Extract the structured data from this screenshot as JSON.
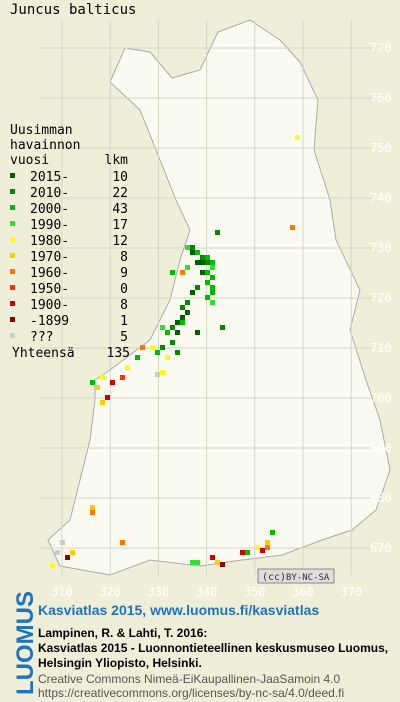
{
  "title": "Juncus balticus",
  "legend": {
    "heading": [
      "Uusimman",
      "havainnon"
    ],
    "col1": "vuosi",
    "col2": "lkm",
    "rows": [
      {
        "label": "2015-",
        "count": 10,
        "color": "#006000"
      },
      {
        "label": "2010-",
        "count": 22,
        "color": "#008800"
      },
      {
        "label": "2000-",
        "count": 43,
        "color": "#00bb00"
      },
      {
        "label": "1990-",
        "count": 17,
        "color": "#33dd33"
      },
      {
        "label": "1980-",
        "count": 12,
        "color": "#ffff00"
      },
      {
        "label": "1970-",
        "count": 8,
        "color": "#ffcc00"
      },
      {
        "label": "1960-",
        "count": 9,
        "color": "#ff7700"
      },
      {
        "label": "1950-",
        "count": 0,
        "color": "#ff3300"
      },
      {
        "label": "1900-",
        "count": 8,
        "color": "#cc0000"
      },
      {
        "label": "-1899",
        "count": 1,
        "color": "#880000"
      },
      {
        "label": "???",
        "count": 5,
        "color": "#cccccc"
      }
    ],
    "total_label": "Yhteensä",
    "total": 135
  },
  "grid": {
    "x_labels": [
      310,
      320,
      330,
      340,
      350,
      360,
      370
    ],
    "y_labels": [
      670,
      680,
      690,
      700,
      710,
      720,
      730,
      740,
      750,
      760,
      770
    ]
  },
  "badge": "BY-NC-SA",
  "logo": "LUOMUS",
  "footer": {
    "link": "Kasviatlas 2015, www.luomus.fi/kasviatlas",
    "citation": [
      "Lampinen, R. & Lahti, T. 2016:",
      "Kasviatlas 2015 - Luonnontieteellinen keskusmuseo Luomus,",
      "Helsingin Yliopisto, Helsinki."
    ],
    "license": [
      "Creative Commons Nimeä-EiKaupallinen-JaaSamoin 4.0",
      "https://creativecommons.org/licenses/by-nc-sa/4.0/deed.fi"
    ]
  }
}
